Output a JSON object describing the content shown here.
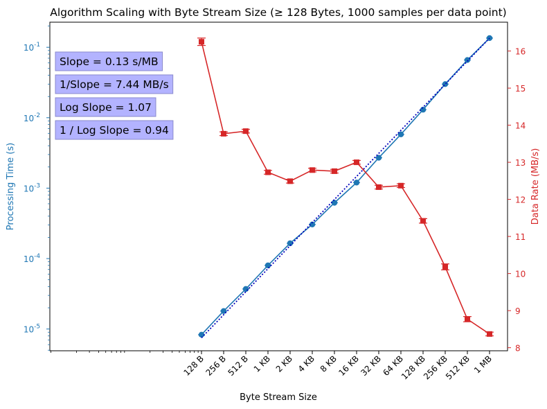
{
  "chart_data": {
    "type": "line",
    "title": "Algorithm Scaling with Byte Stream Size (≥ 128 Bytes, 1000 samples per data point)",
    "xlabel": "Byte Stream Size",
    "ylabel_left": "Processing Time (s)",
    "ylabel_right": "Data Rate (MB/s)",
    "x_scale": "log2",
    "left_y_scale": "log10",
    "categories": [
      "128 B",
      "256 B",
      "512 B",
      "1 KB",
      "2 KB",
      "4 KB",
      "8 KB",
      "16 KB",
      "32 KB",
      "64 KB",
      "128 KB",
      "256 KB",
      "512 KB",
      "1 MB"
    ],
    "left_yticks": [
      "10^-5",
      "10^-4",
      "10^-3",
      "10^-2",
      "10^-1"
    ],
    "right_yticks": [
      "8",
      "9",
      "10",
      "11",
      "12",
      "13",
      "14",
      "15",
      "16"
    ],
    "right_ylim": [
      7.95,
      16.6
    ],
    "series": [
      {
        "axis": "left",
        "color": "#1f77b4",
        "marker": "circle",
        "values": [
          8.3e-06,
          1.8e-05,
          3.7e-05,
          8e-05,
          0.000165,
          0.000305,
          0.00062,
          0.0012,
          0.0027,
          0.0058,
          0.013,
          0.03,
          0.066,
          0.135
        ]
      },
      {
        "axis": "right",
        "color": "#d62728",
        "marker": "square",
        "values": [
          16.25,
          13.77,
          13.84,
          12.73,
          12.49,
          12.79,
          12.76,
          13.0,
          12.33,
          12.37,
          11.42,
          10.18,
          8.77,
          8.37
        ],
        "errors": [
          0.1,
          0.05,
          0.05,
          0.05,
          0.05,
          0.05,
          0.05,
          0.05,
          0.05,
          0.05,
          0.06,
          0.08,
          0.07,
          0.05
        ]
      },
      {
        "axis": "left",
        "color": "#0000bb",
        "style": "dotted",
        "values_from_to": [
          7.5e-06,
          0.135
        ]
      }
    ],
    "annotations": [
      "Slope = 0.13 s/MB",
      "1/Slope = 7.44 MB/s",
      "Log Slope = 1.07",
      "1 / Log Slope = 0.94"
    ],
    "annotation_box_color": "#b3b3ff",
    "grid": false,
    "legend": "none"
  }
}
